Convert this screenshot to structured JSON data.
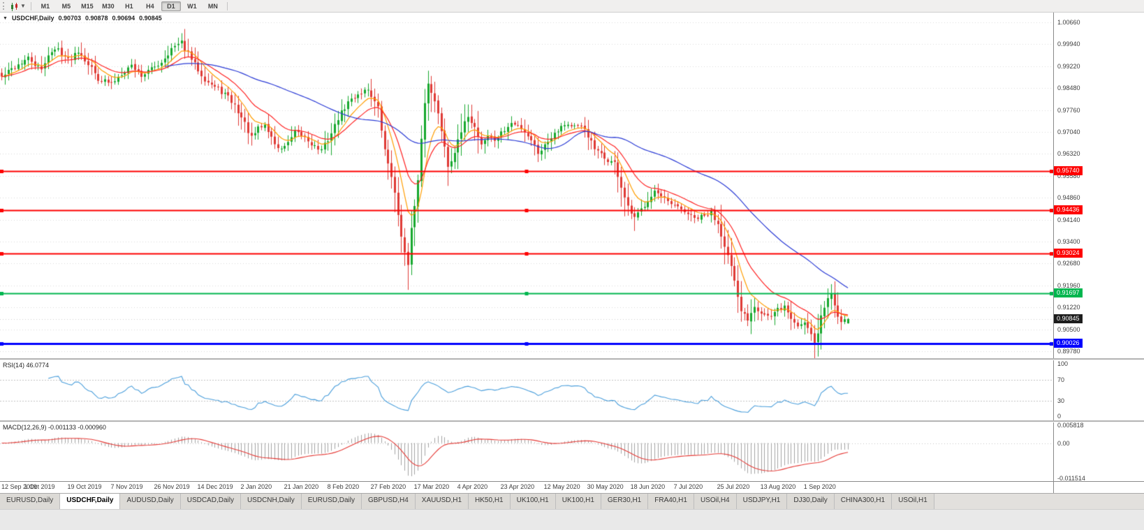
{
  "toolbar": {
    "timeframes": [
      "M1",
      "M5",
      "M15",
      "M30",
      "H1",
      "H4",
      "D1",
      "W1",
      "MN"
    ],
    "active_timeframe": "D1"
  },
  "chart": {
    "title": "USDCHF,Daily",
    "ohlc": {
      "open": "0.90703",
      "high": "0.90878",
      "low": "0.90694",
      "close": "0.90845"
    },
    "current_price": "0.90845",
    "price_axis_labels": [
      "1.00660",
      "0.99940",
      "0.99220",
      "0.98480",
      "0.97760",
      "0.97040",
      "0.96320",
      "0.95580",
      "0.94860",
      "0.94140",
      "0.93400",
      "0.92680",
      "0.91960",
      "0.91220",
      "0.90500",
      "0.89780"
    ],
    "hlines": [
      {
        "price": 0.9574,
        "label": "0.95740",
        "color": "#fe0000",
        "width": 2
      },
      {
        "price": 0.94436,
        "label": "0.94436",
        "color": "#fe0000",
        "width": 2
      },
      {
        "price": 0.93024,
        "label": "0.93024",
        "color": "#fe0000",
        "width": 2
      },
      {
        "price": 0.91697,
        "label": "0.91697",
        "color": "#00b64e",
        "width": 2
      },
      {
        "price": 0.90026,
        "label": "0.90026",
        "color": "#0000fe",
        "width": 3
      }
    ],
    "date_labels": [
      "12 Sep 2019",
      "1 Oct 2019",
      "19 Oct 2019",
      "7 Nov 2019",
      "26 Nov 2019",
      "14 Dec 2019",
      "2 Jan 2020",
      "21 Jan 2020",
      "8 Feb 2020",
      "27 Feb 2020",
      "17 Mar 2020",
      "4 Apr 2020",
      "23 Apr 2020",
      "12 May 2020",
      "30 May 2020",
      "18 Jun 2020",
      "7 Jul 2020",
      "25 Jul 2020",
      "13 Aug 2020",
      "1 Sep 2020"
    ],
    "date_label_step": 13,
    "colors": {
      "up": "#17a82e",
      "down": "#df3a35",
      "grid": "#dadada",
      "current_price_tag_bg": "#1d1d1d",
      "bid_line": "#cfcfcf"
    }
  },
  "chart_data": {
    "type": "candlestick",
    "symbol": "USDCHF",
    "period": "Daily",
    "num_candles": 255,
    "seed": 42,
    "noise": 0.0018,
    "close_anchors": [
      [
        0,
        0.9885
      ],
      [
        4,
        0.992
      ],
      [
        8,
        0.9946
      ],
      [
        12,
        0.9906
      ],
      [
        14,
        0.9962
      ],
      [
        17,
        0.9978
      ],
      [
        20,
        0.9941
      ],
      [
        23,
        0.9974
      ],
      [
        26,
        0.993
      ],
      [
        29,
        0.9881
      ],
      [
        33,
        0.9862
      ],
      [
        36,
        0.9899
      ],
      [
        39,
        0.9924
      ],
      [
        42,
        0.9891
      ],
      [
        45,
        0.9911
      ],
      [
        48,
        0.9936
      ],
      [
        51,
        0.9978
      ],
      [
        54,
        0.9998
      ],
      [
        56,
        0.9961
      ],
      [
        58,
        0.9926
      ],
      [
        61,
        0.9879
      ],
      [
        64,
        0.9851
      ],
      [
        67,
        0.9829
      ],
      [
        70,
        0.9791
      ],
      [
        73,
        0.9731
      ],
      [
        75,
        0.9682
      ],
      [
        77,
        0.9714
      ],
      [
        79,
        0.9726
      ],
      [
        81,
        0.9686
      ],
      [
        83,
        0.9646
      ],
      [
        86,
        0.9664
      ],
      [
        88,
        0.9701
      ],
      [
        91,
        0.9686
      ],
      [
        94,
        0.9656
      ],
      [
        96,
        0.9641
      ],
      [
        99,
        0.9699
      ],
      [
        101,
        0.9749
      ],
      [
        104,
        0.9801
      ],
      [
        107,
        0.9829
      ],
      [
        110,
        0.9846
      ],
      [
        113,
        0.9781
      ],
      [
        115,
        0.9641
      ],
      [
        117,
        0.9561
      ],
      [
        119,
        0.9431
      ],
      [
        121,
        0.9301
      ],
      [
        122,
        0.9261
      ],
      [
        123,
        0.9379
      ],
      [
        124,
        0.9451
      ],
      [
        125,
        0.9549
      ],
      [
        126,
        0.9679
      ],
      [
        127,
        0.9799
      ],
      [
        128,
        0.9869
      ],
      [
        129,
        0.9841
      ],
      [
        131,
        0.9761
      ],
      [
        133,
        0.9659
      ],
      [
        134,
        0.9591
      ],
      [
        136,
        0.9639
      ],
      [
        138,
        0.9701
      ],
      [
        140,
        0.9759
      ],
      [
        142,
        0.9719
      ],
      [
        144,
        0.9664
      ],
      [
        146,
        0.9691
      ],
      [
        148,
        0.9676
      ],
      [
        151,
        0.9709
      ],
      [
        153,
        0.9731
      ],
      [
        156,
        0.9719
      ],
      [
        159,
        0.9679
      ],
      [
        161,
        0.9636
      ],
      [
        163,
        0.9659
      ],
      [
        166,
        0.9704
      ],
      [
        169,
        0.9731
      ],
      [
        172,
        0.9721
      ],
      [
        175,
        0.9714
      ],
      [
        178,
        0.9646
      ],
      [
        181,
        0.9616
      ],
      [
        184,
        0.9599
      ],
      [
        186,
        0.9521
      ],
      [
        188,
        0.9451
      ],
      [
        190,
        0.9416
      ],
      [
        192,
        0.9446
      ],
      [
        194,
        0.9481
      ],
      [
        196,
        0.9509
      ],
      [
        198,
        0.9486
      ],
      [
        200,
        0.9469
      ],
      [
        202,
        0.9456
      ],
      [
        205,
        0.9441
      ],
      [
        208,
        0.9416
      ],
      [
        211,
        0.9424
      ],
      [
        213,
        0.9436
      ],
      [
        215,
        0.9401
      ],
      [
        217,
        0.9331
      ],
      [
        219,
        0.9256
      ],
      [
        221,
        0.9151
      ],
      [
        222,
        0.9111
      ],
      [
        224,
        0.9086
      ],
      [
        226,
        0.9131
      ],
      [
        228,
        0.9106
      ],
      [
        231,
        0.9089
      ],
      [
        233,
        0.9116
      ],
      [
        235,
        0.9126
      ],
      [
        237,
        0.9086
      ],
      [
        239,
        0.9061
      ],
      [
        241,
        0.9076
      ],
      [
        243,
        0.9041
      ],
      [
        244,
        0.9006
      ],
      [
        245,
        0.9041
      ],
      [
        246,
        0.9096
      ],
      [
        247,
        0.9121
      ],
      [
        248,
        0.9151
      ],
      [
        249,
        0.9171
      ],
      [
        250,
        0.9136
      ],
      [
        251,
        0.9101
      ],
      [
        252,
        0.9081
      ],
      [
        253,
        0.9076
      ],
      [
        254,
        0.90845
      ]
    ],
    "extremes": [
      [
        54,
        "high",
        1.0018
      ],
      [
        122,
        "low",
        0.9181
      ],
      [
        128,
        "high",
        0.9906
      ],
      [
        190,
        "low",
        0.9376
      ],
      [
        244,
        "low",
        0.8981
      ],
      [
        249,
        "high",
        0.9196
      ]
    ],
    "last_candle": {
      "open": 0.90703,
      "high": 0.90878,
      "low": 0.90694,
      "close": 0.90845
    },
    "moving_averages": [
      {
        "type": "ema",
        "period": 8,
        "color": "#ff9d00",
        "name": "fast-ma"
      },
      {
        "type": "ema",
        "period": 17,
        "color": "#ff2222",
        "name": "mid-ma"
      },
      {
        "type": "sma",
        "period": 50,
        "color": "#2b3bd5",
        "name": "slow-ma"
      }
    ]
  },
  "rsi_panel": {
    "label": "RSI(14) 46.0774",
    "period": 14,
    "value": 46.0774,
    "level_labels": [
      "100",
      "70",
      "30",
      "0"
    ],
    "level_values": [
      100,
      70,
      30,
      0
    ],
    "dashed_levels": [
      70,
      30
    ],
    "line_color": "#4a9edb"
  },
  "macd_panel": {
    "label": "MACD(12,26,9) -0.001133 -0.000960",
    "fast": 12,
    "slow": 26,
    "signal": 9,
    "macd_value": -0.001133,
    "signal_value": -0.00096,
    "axis_labels": [
      "0.005818",
      "0.00",
      "-0.011514"
    ],
    "axis_values": [
      0.005818,
      0,
      -0.011514
    ],
    "histogram_color": "#a3a3a3",
    "signal_color": "#e53935"
  },
  "tabs": {
    "items": [
      "EURUSD,Daily",
      "USDCHF,Daily",
      "AUDUSD,Daily",
      "USDCAD,Daily",
      "USDCNH,Daily",
      "EURUSD,Daily",
      "GBPUSD,H4",
      "XAUUSD,H1",
      "HK50,H1",
      "UK100,H1",
      "UK100,H1",
      "GER30,H1",
      "FRA40,H1",
      "USOil,H4",
      "USDJPY,H1",
      "DJ30,Daily",
      "CHINA300,H1",
      "USOil,H1"
    ],
    "active_index": 1
  }
}
